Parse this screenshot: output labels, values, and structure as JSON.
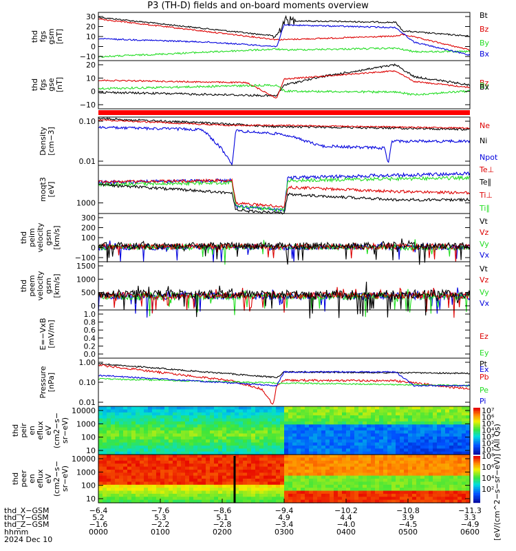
{
  "title": "P3 (TH-D) fields and on-board moments overview",
  "colors": {
    "black": "#000000",
    "red": "#dd0000",
    "green": "#22dd22",
    "blue": "#0000dd",
    "bar_red": "#ff0000"
  },
  "chart_data": [
    {
      "type": "line",
      "ylabel": [
        "thd",
        "fgs",
        "gsm",
        "[nT]"
      ],
      "yticks": [
        "30",
        "20",
        "10",
        "0",
        "−10"
      ],
      "series": [
        {
          "name": "Bt",
          "color": "black"
        },
        {
          "name": "Bz",
          "color": "red"
        },
        {
          "name": "By",
          "color": "green"
        },
        {
          "name": "Bx",
          "color": "blue"
        }
      ]
    },
    {
      "type": "line",
      "ylabel": [
        "thd",
        "fgs",
        "gse",
        "[nT]"
      ],
      "yticks": [
        "20",
        "10",
        "0",
        "−10"
      ],
      "series": [
        {
          "name": "Bz",
          "color": "red"
        },
        {
          "name": "By",
          "color": "green"
        },
        {
          "name": "Bx",
          "color": "black"
        }
      ]
    },
    {
      "type": "line",
      "ylabel": [
        "Density",
        "[cm−3]"
      ],
      "scale": "log",
      "yticks": [
        "0.10",
        "0.01"
      ],
      "series": [
        {
          "name": "Ne",
          "color": "red"
        },
        {
          "name": "Ni",
          "color": "black"
        },
        {
          "name": "Npot",
          "color": "blue"
        }
      ]
    },
    {
      "type": "line",
      "ylabel": [
        "moqt3",
        "[eV]"
      ],
      "scale": "log",
      "yticks": [
        "1000"
      ],
      "series": [
        {
          "name": "Te⊥",
          "color": "red"
        },
        {
          "name": "Te∥",
          "color": "black"
        },
        {
          "name": "Ti⊥",
          "color": "red"
        },
        {
          "name": "Ti∥",
          "color": "green"
        }
      ]
    },
    {
      "type": "line",
      "ylabel": [
        "thd",
        "peim",
        "velocity",
        "gsm",
        "[km/s]"
      ],
      "yticks": [
        "300",
        "200",
        "100",
        "0",
        "−100"
      ],
      "series": [
        {
          "name": "Vt",
          "color": "black"
        },
        {
          "name": "Vz",
          "color": "red"
        },
        {
          "name": "Vy",
          "color": "green"
        },
        {
          "name": "Vx",
          "color": "blue"
        }
      ]
    },
    {
      "type": "line",
      "ylabel": [
        "thd",
        "peem",
        "velocity",
        "gsm",
        "[km/s]"
      ],
      "yticks": [
        "1500",
        "1000",
        "500",
        "0"
      ],
      "series": [
        {
          "name": "Vt",
          "color": "black"
        },
        {
          "name": "Vz",
          "color": "red"
        },
        {
          "name": "Vy",
          "color": "green"
        },
        {
          "name": "Vx",
          "color": "blue"
        }
      ]
    },
    {
      "type": "line",
      "ylabel": [
        "E=−VxB",
        "[mV/m]"
      ],
      "yticks": [
        "1.0",
        "0.8",
        "0.6",
        "0.4",
        "0.2",
        "0.0"
      ],
      "series": [
        {
          "name": "Ez",
          "color": "red"
        },
        {
          "name": "Ey",
          "color": "green"
        },
        {
          "name": "Ex",
          "color": "blue"
        }
      ]
    },
    {
      "type": "line",
      "ylabel": [
        "Pressure",
        "[nPa]"
      ],
      "scale": "log",
      "yticks": [
        "1.00",
        "0.10",
        "0.01"
      ],
      "series": [
        {
          "name": "Pt",
          "color": "black"
        },
        {
          "name": "Pb",
          "color": "red"
        },
        {
          "name": "Pe",
          "color": "green"
        },
        {
          "name": "Pi",
          "color": "blue"
        }
      ]
    },
    {
      "type": "heatmap",
      "ylabel": [
        "thd",
        "peir",
        "en",
        "eflux",
        "eV",
        "(cm2−s−",
        "sr−eV)"
      ],
      "scale": "log",
      "yticks": [
        "10000",
        "1000",
        "100",
        "10"
      ]
    },
    {
      "type": "heatmap",
      "ylabel": [
        "thd",
        "peer",
        "en",
        "eflux",
        "eV",
        "(cm2−s−",
        "sr−eV)"
      ],
      "scale": "log",
      "yticks": [
        "10000",
        "1000",
        "100",
        "10"
      ]
    }
  ],
  "colorbar_top": {
    "ticks": [
      "10⁷",
      "10⁶",
      "10⁵",
      "10⁴",
      "10³",
      "10²",
      "10¹"
    ],
    "label": "[eV/(cm^2−s−sr−eV)] (All Qs)"
  },
  "colorbar_bottom": {
    "ticks": [
      "10⁸",
      "10⁶",
      "10⁴",
      "10²"
    ]
  },
  "x_axis": {
    "row_labels": [
      "thd_X−GSM",
      "thd_Y−GSM",
      "thd_Z−GSM",
      "hhmm",
      "2024 Dec 10"
    ],
    "columns": [
      {
        "x": "−6.4",
        "y": "5.2",
        "z": "−1.6",
        "t": "0000"
      },
      {
        "x": "−7.6",
        "y": "5.3",
        "z": "−2.2",
        "t": "0100"
      },
      {
        "x": "−8.6",
        "y": "5.1",
        "z": "−2.8",
        "t": "0200"
      },
      {
        "x": "−9.4",
        "y": "4.9",
        "z": "−3.4",
        "t": "0300"
      },
      {
        "x": "−10.2",
        "y": "4.4",
        "z": "−4.0",
        "t": "0400"
      },
      {
        "x": "−10.8",
        "y": "3.9",
        "z": "−4.5",
        "t": "0500"
      },
      {
        "x": "−11.3",
        "y": "3.3",
        "z": "−4.9",
        "t": "0600"
      }
    ]
  }
}
